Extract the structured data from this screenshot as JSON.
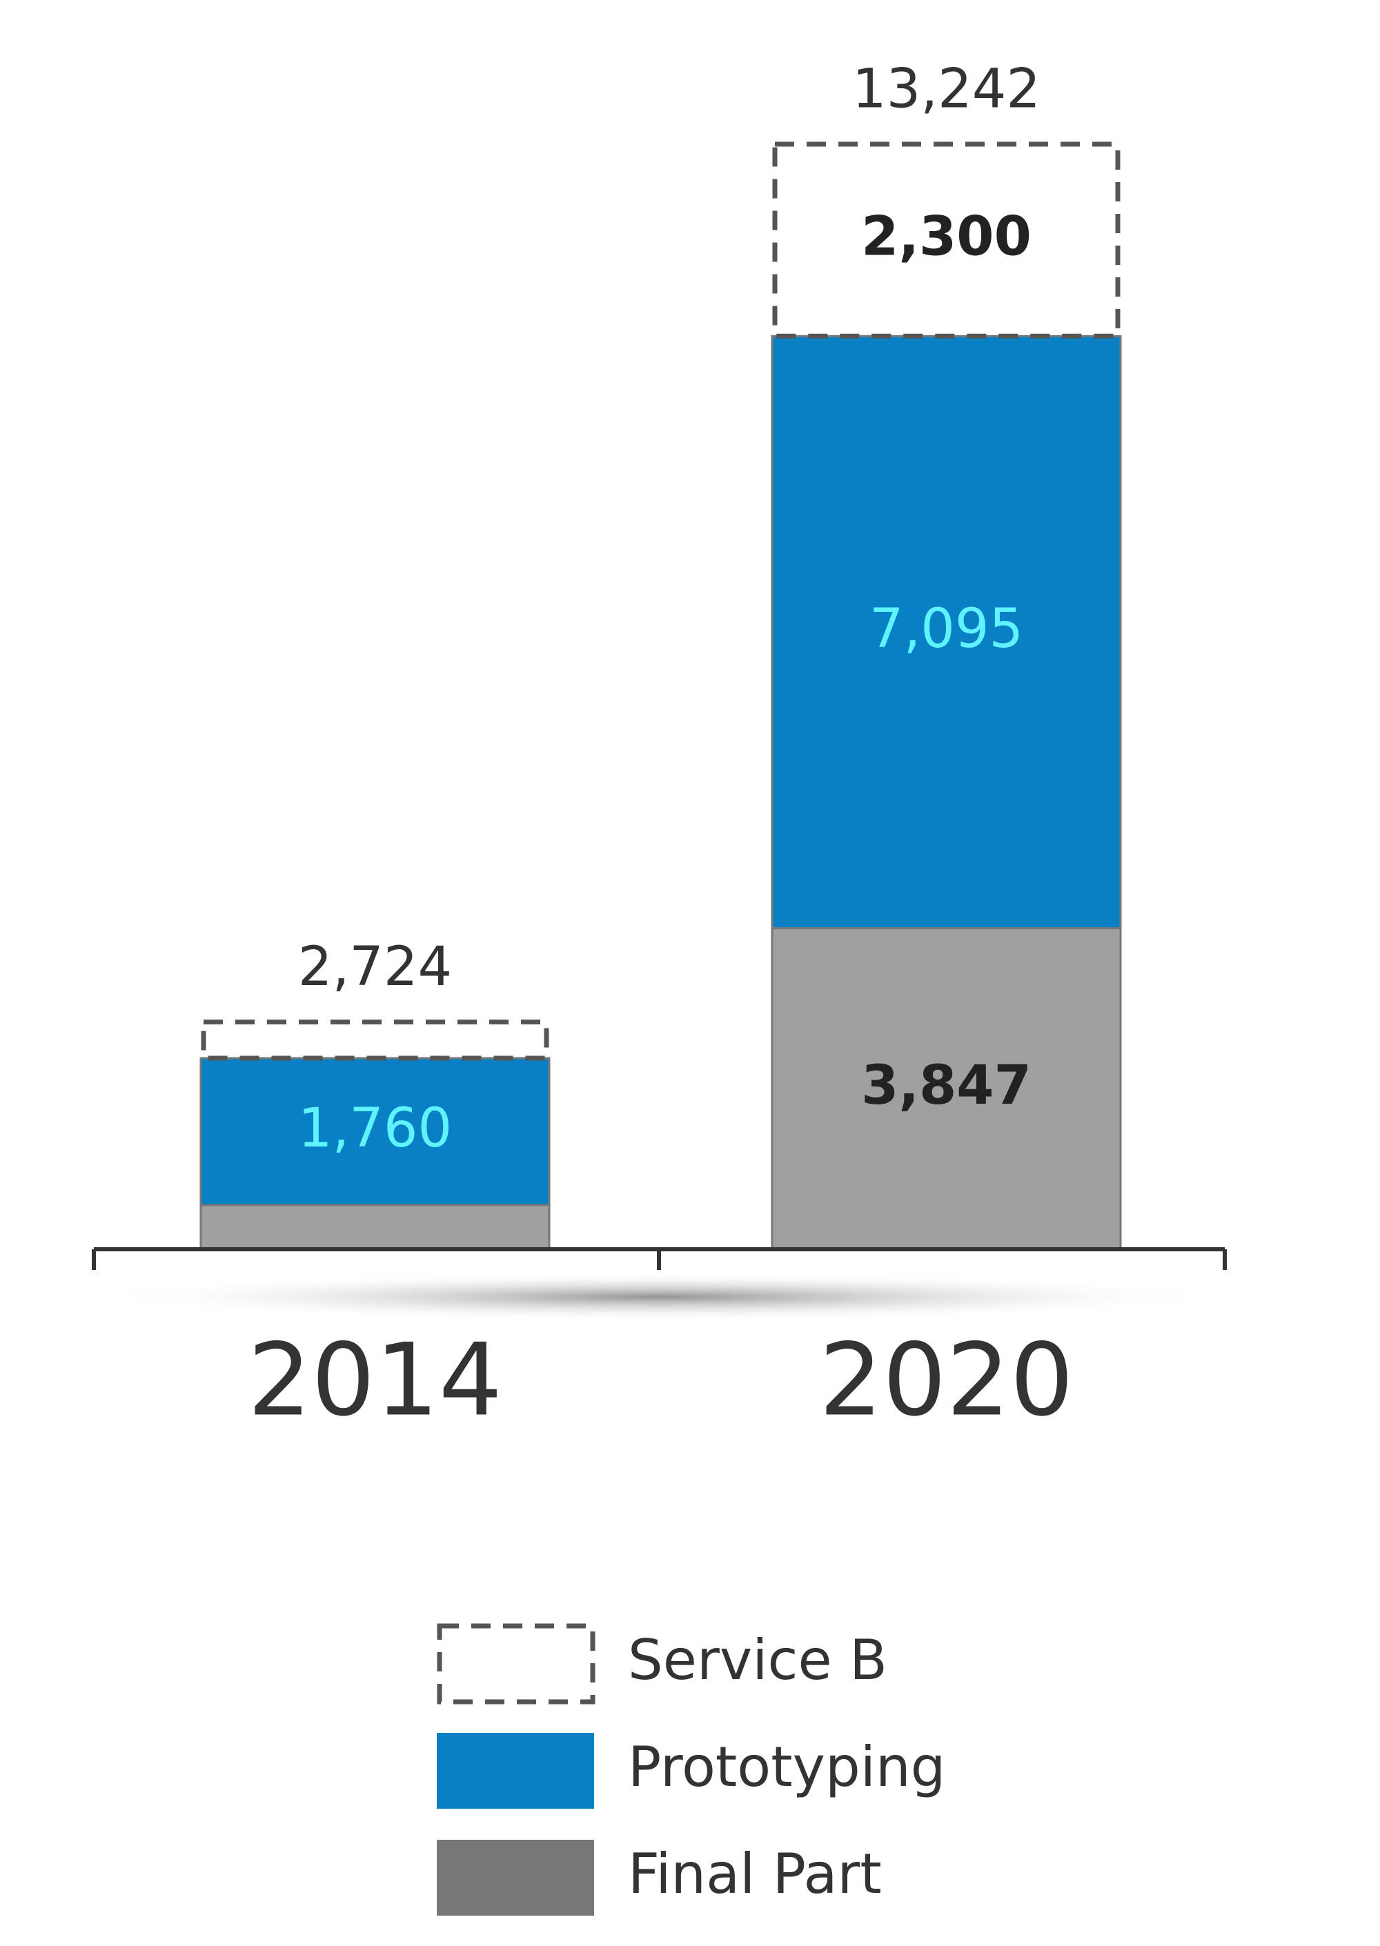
{
  "chart_data": {
    "type": "stacked_bar",
    "categories": [
      "2014",
      "2020"
    ],
    "series": [
      {
        "name": "Final Part",
        "color": "#a0a0a0",
        "values": [
          530,
          3847
        ],
        "value_labels": [
          null,
          "3,847"
        ]
      },
      {
        "name": "Prototyping",
        "color": "#0a80c4",
        "values": [
          1760,
          7095
        ],
        "value_labels": [
          "1,760",
          "7,095"
        ]
      },
      {
        "name": "Service B",
        "color": "#555555",
        "dashed": true,
        "values": [
          434,
          2300
        ],
        "value_labels": [
          null,
          "2,300"
        ]
      }
    ],
    "totals": [
      2724,
      13242
    ],
    "total_labels": [
      "2,724",
      "13,242"
    ]
  }
}
